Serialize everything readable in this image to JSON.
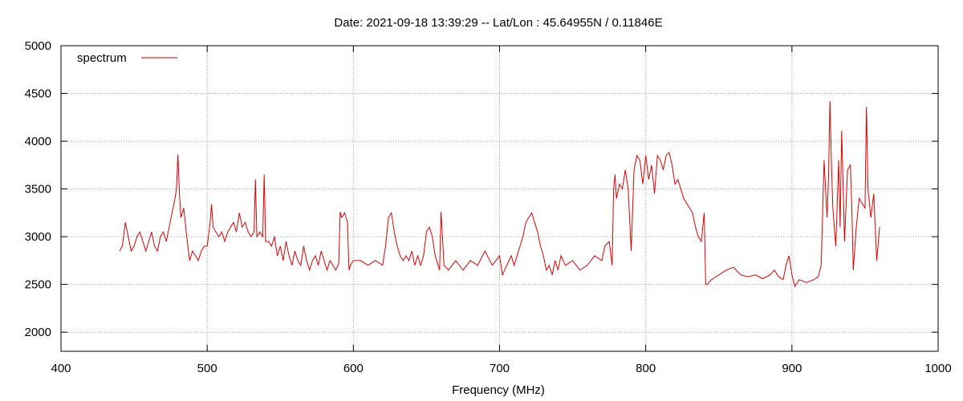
{
  "chart_data": {
    "type": "line",
    "title": "Date: 2021-09-18 13:39:29  --  Lat/Lon : 45.64955N / 0.11846E",
    "xlabel": "Frequency (MHz)",
    "ylabel": "",
    "xlim": [
      400,
      1000
    ],
    "ylim": [
      1800,
      5000
    ],
    "xticks": [
      400,
      500,
      600,
      700,
      800,
      900,
      1000
    ],
    "yticks": [
      2000,
      2500,
      3000,
      3500,
      4000,
      4500,
      5000
    ],
    "grid": true,
    "legend": "top-left",
    "series_color": "#e00000",
    "series": [
      {
        "name": "spectrum",
        "x": [
          440,
          442,
          444,
          446,
          448,
          450,
          452,
          454,
          456,
          458,
          460,
          462,
          464,
          466,
          468,
          470,
          472,
          474,
          476,
          478,
          479,
          480,
          481,
          482,
          484,
          486,
          488,
          490,
          492,
          494,
          496,
          498,
          500,
          502,
          503,
          504,
          506,
          508,
          510,
          512,
          514,
          516,
          518,
          520,
          522,
          524,
          526,
          528,
          530,
          532,
          533,
          534,
          536,
          538,
          539,
          540,
          542,
          544,
          546,
          548,
          550,
          552,
          554,
          556,
          558,
          560,
          562,
          564,
          566,
          568,
          570,
          572,
          574,
          576,
          578,
          580,
          582,
          584,
          586,
          588,
          590,
          591,
          592,
          594,
          596,
          597,
          598,
          600,
          605,
          610,
          615,
          620,
          622,
          624,
          626,
          628,
          630,
          632,
          634,
          636,
          638,
          640,
          642,
          644,
          646,
          648,
          650,
          652,
          654,
          656,
          658,
          659,
          660,
          662,
          665,
          670,
          675,
          680,
          685,
          690,
          695,
          700,
          702,
          705,
          708,
          710,
          712,
          714,
          716,
          718,
          720,
          722,
          724,
          726,
          728,
          730,
          732,
          734,
          736,
          738,
          740,
          742,
          745,
          750,
          755,
          760,
          765,
          770,
          772,
          775,
          777,
          778,
          779,
          780,
          782,
          784,
          786,
          788,
          790,
          792,
          794,
          796,
          798,
          800,
          802,
          804,
          806,
          808,
          810,
          812,
          814,
          816,
          818,
          820,
          822,
          824,
          826,
          828,
          830,
          832,
          834,
          836,
          838,
          840,
          841,
          842,
          845,
          850,
          855,
          860,
          865,
          870,
          875,
          880,
          885,
          888,
          891,
          894,
          896,
          898,
          900,
          902,
          905,
          910,
          915,
          918,
          920,
          922,
          924,
          925,
          926,
          927,
          928,
          930,
          932,
          933,
          934,
          936,
          938,
          940,
          941,
          942,
          944,
          946,
          948,
          950,
          951,
          952,
          954,
          956,
          958,
          960
        ],
        "y": [
          2850,
          2900,
          3150,
          3000,
          2850,
          2900,
          3000,
          3050,
          2950,
          2850,
          2950,
          3050,
          2900,
          2850,
          3000,
          3050,
          2950,
          3100,
          3250,
          3400,
          3500,
          3860,
          3450,
          3200,
          3300,
          3000,
          2750,
          2850,
          2800,
          2750,
          2850,
          2900,
          2900,
          3150,
          3340,
          3100,
          3050,
          3000,
          3050,
          2950,
          3050,
          3100,
          3150,
          3050,
          3250,
          3100,
          3150,
          3050,
          3000,
          3050,
          3600,
          3000,
          3050,
          3000,
          3650,
          2950,
          2950,
          2900,
          3000,
          2800,
          2900,
          2750,
          2950,
          2800,
          2700,
          2850,
          2750,
          2700,
          2900,
          2750,
          2650,
          2750,
          2800,
          2700,
          2850,
          2750,
          2650,
          2750,
          2700,
          2650,
          2720,
          3260,
          3200,
          3250,
          3150,
          2650,
          2700,
          2750,
          2750,
          2700,
          2750,
          2700,
          2900,
          3200,
          3250,
          3050,
          2900,
          2800,
          2750,
          2800,
          2750,
          2850,
          2700,
          2800,
          2700,
          2800,
          3050,
          3100,
          3000,
          2800,
          2700,
          2650,
          3260,
          2700,
          2650,
          2750,
          2650,
          2750,
          2700,
          2850,
          2700,
          2800,
          2600,
          2700,
          2800,
          2700,
          2800,
          2900,
          3000,
          3150,
          3200,
          3250,
          3150,
          3050,
          2900,
          2800,
          2650,
          2700,
          2600,
          2750,
          2650,
          2800,
          2700,
          2750,
          2650,
          2700,
          2800,
          2750,
          2900,
          2950,
          2700,
          3500,
          3650,
          3400,
          3550,
          3500,
          3700,
          3500,
          2850,
          3700,
          3850,
          3800,
          3550,
          3850,
          3600,
          3750,
          3450,
          3850,
          3800,
          3700,
          3850,
          3880,
          3750,
          3550,
          3600,
          3500,
          3400,
          3350,
          3300,
          3250,
          3100,
          3000,
          2950,
          3250,
          2500,
          2500,
          2550,
          2600,
          2650,
          2680,
          2600,
          2580,
          2600,
          2560,
          2600,
          2650,
          2580,
          2550,
          2700,
          2800,
          2600,
          2480,
          2550,
          2520,
          2550,
          2580,
          2700,
          3800,
          3200,
          3600,
          4420,
          3800,
          3300,
          2900,
          3800,
          3100,
          4110,
          2950,
          3700,
          3750,
          3300,
          2650,
          3100,
          3400,
          3350,
          3300,
          4360,
          3500,
          3200,
          3450,
          2750,
          3100
        ]
      }
    ]
  }
}
